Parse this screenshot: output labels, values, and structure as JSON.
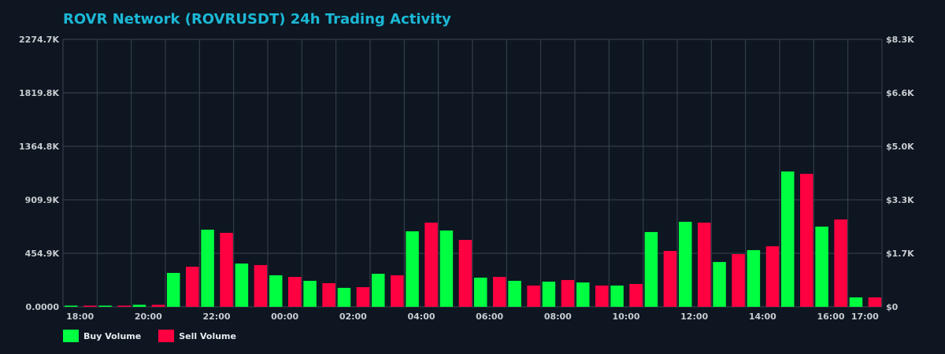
{
  "title": "ROVR Network (ROVRUSDT) 24h Trading Activity",
  "colors": {
    "background": "#0d1621",
    "grid": "#3a4450",
    "buy": "#00ff41",
    "sell": "#ff0040",
    "title": "#1bb8d6",
    "tick": "#c8ccd0"
  },
  "legend": {
    "buy_label": "Buy Volume",
    "sell_label": "Sell Volume"
  },
  "chart_data": {
    "type": "bar",
    "title": "ROVR Network (ROVRUSDT) 24h Trading Activity",
    "xlabel": "",
    "ylabel": "",
    "categories": [
      "18:00",
      "19:00",
      "20:00",
      "21:00",
      "22:00",
      "23:00",
      "00:00",
      "01:00",
      "02:00",
      "03:00",
      "04:00",
      "05:00",
      "06:00",
      "07:00",
      "08:00",
      "09:00",
      "10:00",
      "11:00",
      "12:00",
      "13:00",
      "14:00",
      "15:00",
      "16:00",
      "17:00"
    ],
    "x_tick_labels": [
      "18:00",
      "20:00",
      "22:00",
      "00:00",
      "02:00",
      "04:00",
      "06:00",
      "08:00",
      "10:00",
      "12:00",
      "14:00",
      "16:00",
      "17:00"
    ],
    "series": [
      {
        "name": "Buy Volume",
        "color": "#00ff41",
        "values": [
          5,
          5,
          17,
          288,
          656,
          368,
          268,
          221,
          161,
          281,
          642,
          649,
          248,
          221,
          214,
          207,
          181,
          636,
          723,
          381,
          482,
          1151,
          682,
          80
        ]
      },
      {
        "name": "Sell Volume",
        "color": "#ff0040",
        "values": [
          5,
          5,
          17,
          341,
          629,
          355,
          254,
          201,
          167,
          268,
          716,
          569,
          254,
          181,
          228,
          181,
          194,
          475,
          716,
          448,
          515,
          1131,
          743,
          80
        ]
      }
    ],
    "units": "K",
    "ylim": [
      0,
      2274.7
    ],
    "y_left_ticks": [
      "0.0000",
      "454.9K",
      "909.9K",
      "1364.8K",
      "1819.8K",
      "2274.7K"
    ],
    "y_right_ticks": [
      "$0",
      "$1.7K",
      "$3.3K",
      "$5.0K",
      "$6.6K",
      "$8.3K"
    ],
    "grid": true,
    "legend_position": "bottom-left"
  }
}
